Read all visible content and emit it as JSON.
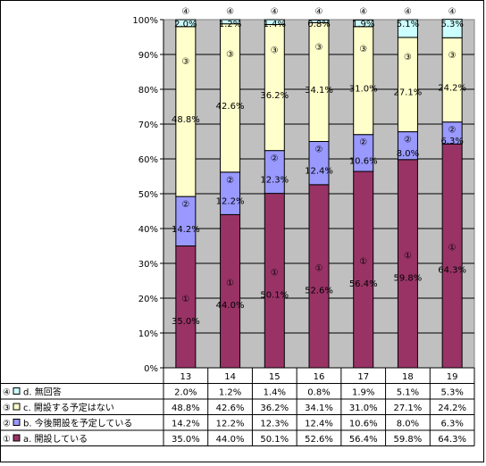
{
  "chart_data": {
    "type": "bar",
    "stacked": true,
    "categories": [
      "13",
      "14",
      "15",
      "16",
      "17",
      "18",
      "19"
    ],
    "ylim": [
      0,
      100
    ],
    "y_ticks": [
      "0%",
      "10%",
      "20%",
      "30%",
      "40%",
      "50%",
      "60%",
      "70%",
      "80%",
      "90%",
      "100%"
    ],
    "grid": true,
    "legend_placement": "table-left",
    "series": [
      {
        "id": "a",
        "marker": "①",
        "name": "a. 開設している",
        "color": "#993366",
        "values": [
          35.0,
          44.0,
          50.1,
          52.6,
          56.4,
          59.8,
          64.3
        ],
        "labels": [
          "35.0%",
          "44.0%",
          "50.1%",
          "52.6%",
          "56.4%",
          "59.8%",
          "64.3%"
        ]
      },
      {
        "id": "b",
        "marker": "②",
        "name": "b. 今後開設を予定している",
        "color": "#9999ff",
        "values": [
          14.2,
          12.2,
          12.3,
          12.4,
          10.6,
          8.0,
          6.3
        ],
        "labels": [
          "14.2%",
          "12.2%",
          "12.3%",
          "12.4%",
          "10.6%",
          "8.0%",
          "6.3%"
        ]
      },
      {
        "id": "c",
        "marker": "③",
        "name": "c. 開設する予定はない",
        "color": "#ffffcc",
        "values": [
          48.8,
          42.6,
          36.2,
          34.1,
          31.0,
          27.1,
          24.2
        ],
        "labels": [
          "48.8%",
          "42.6%",
          "36.2%",
          "34.1%",
          "31.0%",
          "27.1%",
          "24.2%"
        ]
      },
      {
        "id": "d",
        "marker": "④",
        "name": "d. 無回答",
        "color": "#ccffff",
        "values": [
          2.0,
          1.2,
          1.4,
          0.8,
          1.9,
          5.1,
          5.3
        ],
        "labels": [
          "2.0%",
          "1.2%",
          "1.4%",
          "0.8%",
          "1.9%",
          "5.1%",
          "5.3%"
        ]
      }
    ],
    "plot_background": "#c0c0c0"
  }
}
